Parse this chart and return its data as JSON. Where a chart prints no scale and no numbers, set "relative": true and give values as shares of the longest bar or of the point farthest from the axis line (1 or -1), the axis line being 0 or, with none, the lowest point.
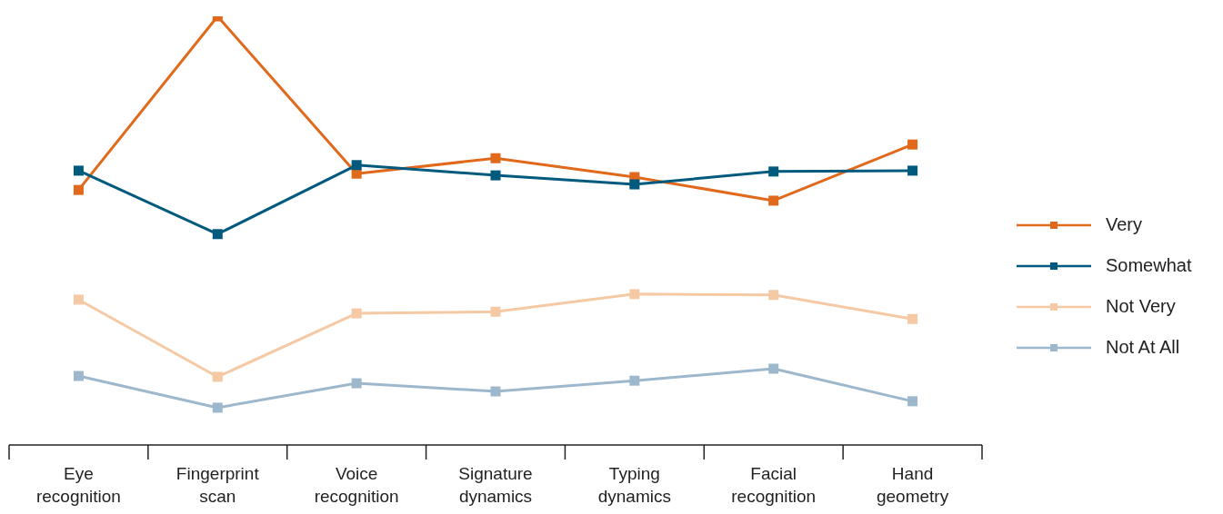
{
  "chart_data": {
    "type": "line",
    "relative": true,
    "categories": [
      "Eye recognition",
      "Fingerprint scan",
      "Voice recognition",
      "Signature dynamics",
      "Typing dynamics",
      "Facial recognition",
      "Hand geometry"
    ],
    "series": [
      {
        "name": "Very",
        "color": "#e0691c",
        "values": [
          0.595,
          1.0,
          0.633,
          0.669,
          0.625,
          0.57,
          0.701
        ]
      },
      {
        "name": "Somewhat",
        "color": "#005a7e",
        "values": [
          0.64,
          0.492,
          0.653,
          0.629,
          0.608,
          0.638,
          0.64
        ]
      },
      {
        "name": "Not Very",
        "color": "#f4c9a4",
        "values": [
          0.339,
          0.159,
          0.307,
          0.311,
          0.352,
          0.35,
          0.294
        ]
      },
      {
        "name": "Not At All",
        "color": "#9db8cc",
        "values": [
          0.161,
          0.087,
          0.144,
          0.125,
          0.15,
          0.178,
          0.102
        ]
      }
    ],
    "legend": "right",
    "marker": "square",
    "line_style": "solid",
    "grid": false
  }
}
